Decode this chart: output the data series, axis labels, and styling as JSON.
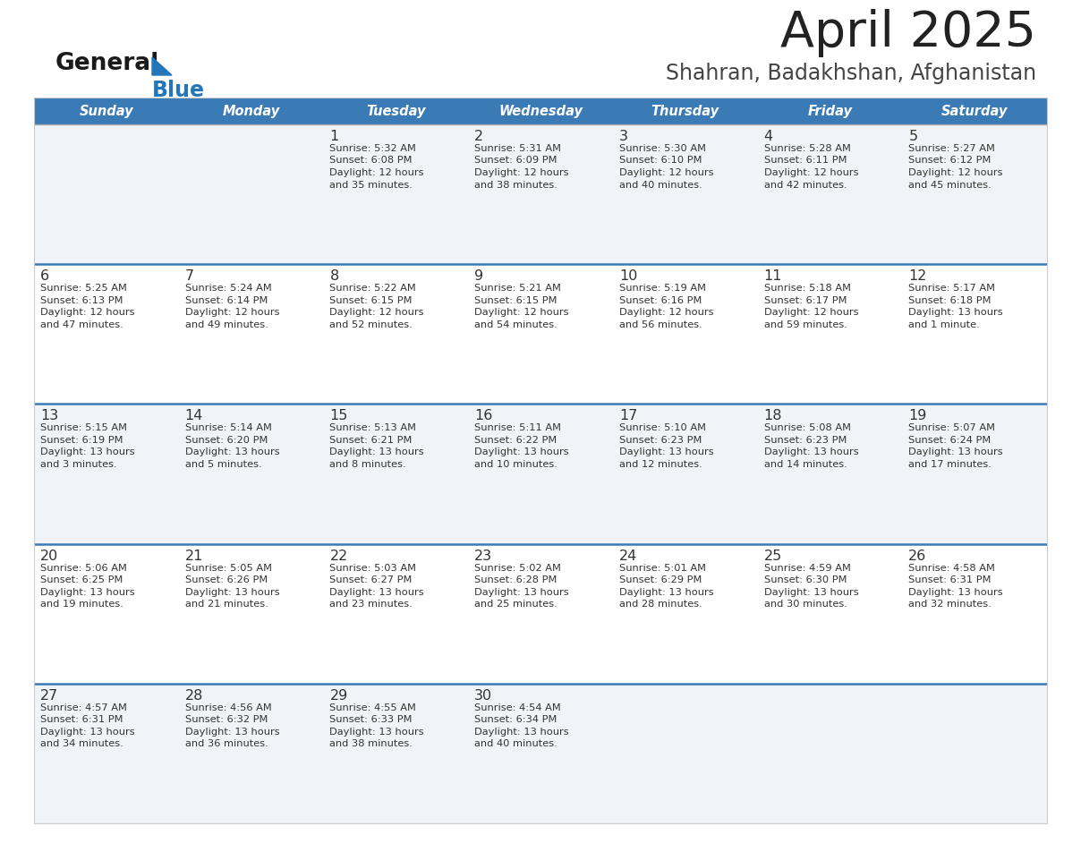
{
  "title": "April 2025",
  "subtitle": "Shahran, Badakhshan, Afghanistan",
  "days_of_week": [
    "Sunday",
    "Monday",
    "Tuesday",
    "Wednesday",
    "Thursday",
    "Friday",
    "Saturday"
  ],
  "header_bg": "#3A7AB5",
  "header_text": "#FFFFFF",
  "row_bg_even": "#F0F4F8",
  "row_bg_odd": "#FFFFFF",
  "divider_color": "#3A7AB5",
  "text_color": "#333333",
  "title_color": "#222222",
  "subtitle_color": "#444444",
  "logo_general_color": "#1a1a1a",
  "logo_blue_color": "#2277BB",
  "calendar_data": [
    [
      null,
      null,
      {
        "day": 1,
        "sunrise": "5:32 AM",
        "sunset": "6:08 PM",
        "daylight": "12 hours and 35 minutes"
      },
      {
        "day": 2,
        "sunrise": "5:31 AM",
        "sunset": "6:09 PM",
        "daylight": "12 hours and 38 minutes"
      },
      {
        "day": 3,
        "sunrise": "5:30 AM",
        "sunset": "6:10 PM",
        "daylight": "12 hours and 40 minutes"
      },
      {
        "day": 4,
        "sunrise": "5:28 AM",
        "sunset": "6:11 PM",
        "daylight": "12 hours and 42 minutes"
      },
      {
        "day": 5,
        "sunrise": "5:27 AM",
        "sunset": "6:12 PM",
        "daylight": "12 hours and 45 minutes"
      }
    ],
    [
      {
        "day": 6,
        "sunrise": "5:25 AM",
        "sunset": "6:13 PM",
        "daylight": "12 hours and 47 minutes"
      },
      {
        "day": 7,
        "sunrise": "5:24 AM",
        "sunset": "6:14 PM",
        "daylight": "12 hours and 49 minutes"
      },
      {
        "day": 8,
        "sunrise": "5:22 AM",
        "sunset": "6:15 PM",
        "daylight": "12 hours and 52 minutes"
      },
      {
        "day": 9,
        "sunrise": "5:21 AM",
        "sunset": "6:15 PM",
        "daylight": "12 hours and 54 minutes"
      },
      {
        "day": 10,
        "sunrise": "5:19 AM",
        "sunset": "6:16 PM",
        "daylight": "12 hours and 56 minutes"
      },
      {
        "day": 11,
        "sunrise": "5:18 AM",
        "sunset": "6:17 PM",
        "daylight": "12 hours and 59 minutes"
      },
      {
        "day": 12,
        "sunrise": "5:17 AM",
        "sunset": "6:18 PM",
        "daylight": "13 hours and 1 minute"
      }
    ],
    [
      {
        "day": 13,
        "sunrise": "5:15 AM",
        "sunset": "6:19 PM",
        "daylight": "13 hours and 3 minutes"
      },
      {
        "day": 14,
        "sunrise": "5:14 AM",
        "sunset": "6:20 PM",
        "daylight": "13 hours and 5 minutes"
      },
      {
        "day": 15,
        "sunrise": "5:13 AM",
        "sunset": "6:21 PM",
        "daylight": "13 hours and 8 minutes"
      },
      {
        "day": 16,
        "sunrise": "5:11 AM",
        "sunset": "6:22 PM",
        "daylight": "13 hours and 10 minutes"
      },
      {
        "day": 17,
        "sunrise": "5:10 AM",
        "sunset": "6:23 PM",
        "daylight": "13 hours and 12 minutes"
      },
      {
        "day": 18,
        "sunrise": "5:08 AM",
        "sunset": "6:23 PM",
        "daylight": "13 hours and 14 minutes"
      },
      {
        "day": 19,
        "sunrise": "5:07 AM",
        "sunset": "6:24 PM",
        "daylight": "13 hours and 17 minutes"
      }
    ],
    [
      {
        "day": 20,
        "sunrise": "5:06 AM",
        "sunset": "6:25 PM",
        "daylight": "13 hours and 19 minutes"
      },
      {
        "day": 21,
        "sunrise": "5:05 AM",
        "sunset": "6:26 PM",
        "daylight": "13 hours and 21 minutes"
      },
      {
        "day": 22,
        "sunrise": "5:03 AM",
        "sunset": "6:27 PM",
        "daylight": "13 hours and 23 minutes"
      },
      {
        "day": 23,
        "sunrise": "5:02 AM",
        "sunset": "6:28 PM",
        "daylight": "13 hours and 25 minutes"
      },
      {
        "day": 24,
        "sunrise": "5:01 AM",
        "sunset": "6:29 PM",
        "daylight": "13 hours and 28 minutes"
      },
      {
        "day": 25,
        "sunrise": "4:59 AM",
        "sunset": "6:30 PM",
        "daylight": "13 hours and 30 minutes"
      },
      {
        "day": 26,
        "sunrise": "4:58 AM",
        "sunset": "6:31 PM",
        "daylight": "13 hours and 32 minutes"
      }
    ],
    [
      {
        "day": 27,
        "sunrise": "4:57 AM",
        "sunset": "6:31 PM",
        "daylight": "13 hours and 34 minutes"
      },
      {
        "day": 28,
        "sunrise": "4:56 AM",
        "sunset": "6:32 PM",
        "daylight": "13 hours and 36 minutes"
      },
      {
        "day": 29,
        "sunrise": "4:55 AM",
        "sunset": "6:33 PM",
        "daylight": "13 hours and 38 minutes"
      },
      {
        "day": 30,
        "sunrise": "4:54 AM",
        "sunset": "6:34 PM",
        "daylight": "13 hours and 40 minutes"
      },
      null,
      null,
      null
    ]
  ]
}
